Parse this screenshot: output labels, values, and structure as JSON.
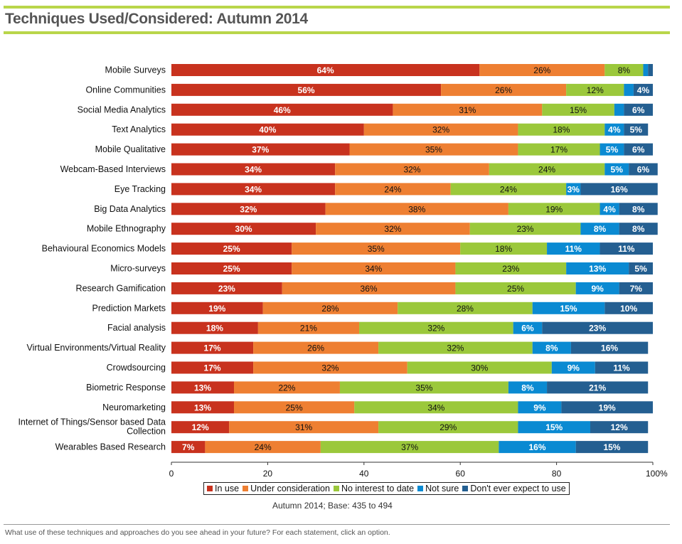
{
  "title": "Techniques Used/Considered: Autumn 2014",
  "base_note": "Autumn 2014; Base: 435 to 494",
  "footer_question": "What use of these techniques and approaches do you see ahead in your future? For each statement, click an option.",
  "colors": {
    "in_use": "#C8321E",
    "under_consideration": "#EE7F32",
    "no_interest": "#9BC83B",
    "not_sure": "#0A8AD2",
    "dont_expect": "#245F91",
    "accent_rule": "#B9D64A"
  },
  "chart_data": {
    "type": "bar",
    "orientation": "horizontal",
    "stacked": true,
    "title": "Techniques Used/Considered: Autumn 2014",
    "xlabel": "",
    "ylabel": "",
    "xlim": [
      0,
      100
    ],
    "x_ticks": [
      "0",
      "20",
      "40",
      "60",
      "80",
      "100%"
    ],
    "x_tick_values": [
      0,
      20,
      40,
      60,
      80,
      100
    ],
    "legend_position": "bottom",
    "grid": false,
    "categories": [
      "Mobile Surveys",
      "Online Communities",
      "Social Media Analytics",
      "Text Analytics",
      "Mobile Qualitative",
      "Webcam-Based Interviews",
      "Eye Tracking",
      "Big Data Analytics",
      "Mobile Ethnography",
      "Behavioural Economics Models",
      "Micro-surveys",
      "Research Gamification",
      "Prediction Markets",
      "Facial analysis",
      "Virtual Environments/Virtual Reality",
      "Crowdsourcing",
      "Biometric Response",
      "Neuromarketing",
      "Internet of Things/Sensor based Data Collection",
      "Wearables Based Research"
    ],
    "series": [
      {
        "name": "In use",
        "color_key": "in_use",
        "label_color": "#ffffff",
        "values": [
          64,
          56,
          46,
          40,
          37,
          34,
          34,
          32,
          30,
          25,
          25,
          23,
          19,
          18,
          17,
          17,
          13,
          13,
          12,
          7
        ],
        "labels": [
          "64%",
          "56%",
          "46%",
          "40%",
          "37%",
          "34%",
          "34%",
          "32%",
          "30%",
          "25%",
          "25%",
          "23%",
          "19%",
          "18%",
          "17%",
          "17%",
          "13%",
          "13%",
          "12%",
          "7%"
        ]
      },
      {
        "name": "Under consideration",
        "color_key": "under_consideration",
        "label_color": "#111111",
        "values": [
          26,
          26,
          31,
          32,
          35,
          32,
          24,
          38,
          32,
          35,
          34,
          36,
          28,
          21,
          26,
          32,
          22,
          25,
          31,
          24
        ],
        "labels": [
          "26%",
          "26%",
          "31%",
          "32%",
          "35%",
          "32%",
          "24%",
          "38%",
          "32%",
          "35%",
          "34%",
          "36%",
          "28%",
          "21%",
          "26%",
          "32%",
          "22%",
          "25%",
          "31%",
          "24%"
        ]
      },
      {
        "name": "No interest to date",
        "color_key": "no_interest",
        "label_color": "#111111",
        "values": [
          8,
          12,
          15,
          18,
          17,
          24,
          24,
          19,
          23,
          18,
          23,
          25,
          28,
          32,
          32,
          30,
          35,
          34,
          29,
          37
        ],
        "labels": [
          "8%",
          "12%",
          "15%",
          "18%",
          "17%",
          "24%",
          "24%",
          "19%",
          "23%",
          "18%",
          "23%",
          "25%",
          "28%",
          "32%",
          "32%",
          "30%",
          "35%",
          "34%",
          "29%",
          "37%"
        ]
      },
      {
        "name": "Not sure",
        "color_key": "not_sure",
        "label_color": "#ffffff",
        "values": [
          1,
          2,
          2,
          4,
          5,
          5,
          3,
          4,
          8,
          11,
          13,
          9,
          15,
          6,
          8,
          9,
          8,
          9,
          15,
          16
        ],
        "labels": [
          "",
          "",
          "",
          "4%",
          "5%",
          "5%",
          "3%",
          "4%",
          "8%",
          "11%",
          "13%",
          "9%",
          "15%",
          "6%",
          "8%",
          "9%",
          "8%",
          "9%",
          "15%",
          "16%"
        ]
      },
      {
        "name": "Don't ever expect to use",
        "color_key": "dont_expect",
        "label_color": "#ffffff",
        "values": [
          1,
          4,
          6,
          5,
          6,
          6,
          16,
          8,
          8,
          11,
          5,
          7,
          10,
          23,
          16,
          11,
          21,
          19,
          12,
          15
        ],
        "labels": [
          "",
          "4%",
          "6%",
          "5%",
          "6%",
          "6%",
          "16%",
          "8%",
          "8%",
          "11%",
          "5%",
          "7%",
          "10%",
          "23%",
          "16%",
          "11%",
          "21%",
          "19%",
          "12%",
          "15%"
        ]
      }
    ]
  }
}
